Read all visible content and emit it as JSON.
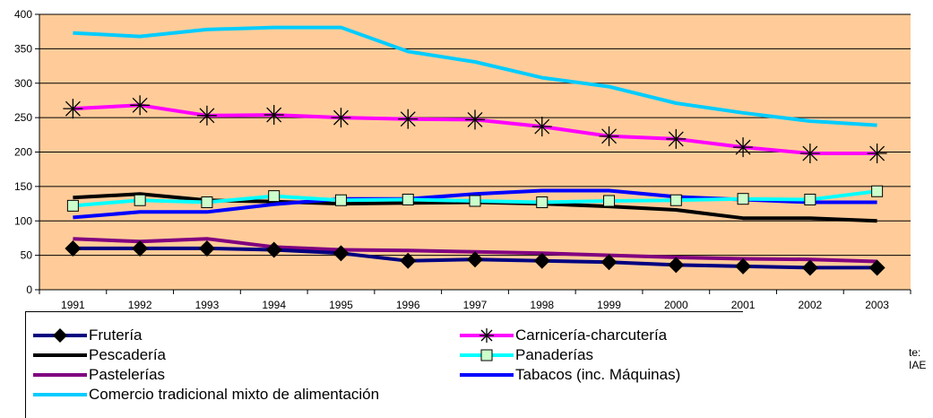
{
  "chart_data": {
    "type": "line",
    "categories": [
      "1991",
      "1992",
      "1993",
      "1994",
      "1995",
      "1996",
      "1997",
      "1998",
      "1999",
      "2000",
      "2001",
      "2002",
      "2003"
    ],
    "ylim": [
      0,
      400
    ],
    "yticks": [
      0,
      50,
      100,
      150,
      200,
      250,
      300,
      350,
      400
    ],
    "grid": true,
    "background_color": "#FFCC99",
    "legend_position": "bottom",
    "series": [
      {
        "name": "Frutería",
        "color": "#000080",
        "marker": "diamond",
        "values": [
          60,
          60,
          60,
          58,
          53,
          42,
          44,
          42,
          40,
          36,
          34,
          32,
          32
        ]
      },
      {
        "name": "Carnicería-charcutería",
        "color": "#FF00FF",
        "marker": "star",
        "values": [
          263,
          268,
          253,
          254,
          250,
          248,
          247,
          237,
          223,
          219,
          207,
          198,
          198
        ]
      },
      {
        "name": "Pescadería",
        "color": "#000000",
        "marker": "none",
        "values": [
          134,
          139,
          130,
          128,
          125,
          126,
          127,
          125,
          121,
          116,
          104,
          104,
          100
        ]
      },
      {
        "name": "Panaderías",
        "color": "#00FFFF",
        "marker": "square",
        "values": [
          122,
          130,
          127,
          136,
          130,
          131,
          129,
          127,
          129,
          130,
          132,
          131,
          143
        ]
      },
      {
        "name": "Pastelerías",
        "color": "#800080",
        "marker": "none",
        "values": [
          74,
          70,
          74,
          62,
          58,
          57,
          55,
          53,
          50,
          47,
          45,
          44,
          41
        ]
      },
      {
        "name": "Tabacos (inc. Máquinas)",
        "color": "#0000FF",
        "marker": "none",
        "values": [
          105,
          113,
          113,
          124,
          132,
          132,
          139,
          144,
          144,
          135,
          131,
          127,
          127
        ]
      },
      {
        "name": "Comercio tradicional mixto de alimentación",
        "color": "#00CCFF",
        "marker": "none",
        "values": [
          373,
          368,
          378,
          381,
          381,
          346,
          331,
          308,
          295,
          271,
          257,
          245,
          239
        ]
      }
    ]
  },
  "source_note": "te: IAE"
}
